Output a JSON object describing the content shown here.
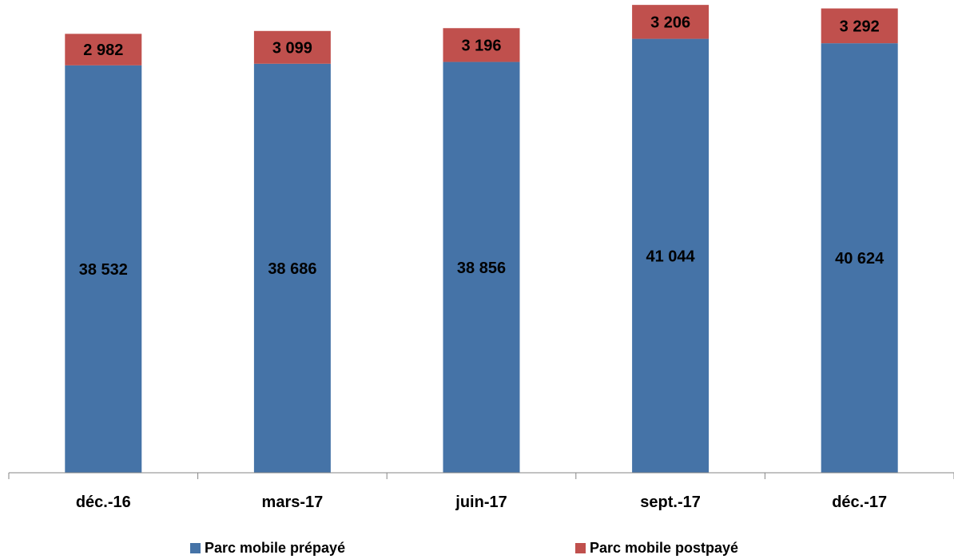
{
  "chart_data": {
    "type": "bar",
    "stacked": true,
    "categories": [
      "déc.-16",
      "mars-17",
      "juin-17",
      "sept.-17",
      "déc.-17"
    ],
    "series": [
      {
        "name": "Parc mobile prépayé",
        "color": "#4573A7",
        "values": [
          38532,
          38686,
          38856,
          41044,
          40624
        ],
        "labels": [
          "38 532",
          "38 686",
          "38 856",
          "41 044",
          "40 624"
        ]
      },
      {
        "name": "Parc mobile postpayé",
        "color": "#C0504D",
        "values": [
          2982,
          3099,
          3196,
          3206,
          3292
        ],
        "labels": [
          "2 982",
          "3 099",
          "3 196",
          "3 206",
          "3 292"
        ]
      }
    ],
    "title": "",
    "xlabel": "",
    "ylabel": "",
    "ylim": [
      0,
      45000
    ],
    "grid": false,
    "legend_position": "bottom"
  }
}
